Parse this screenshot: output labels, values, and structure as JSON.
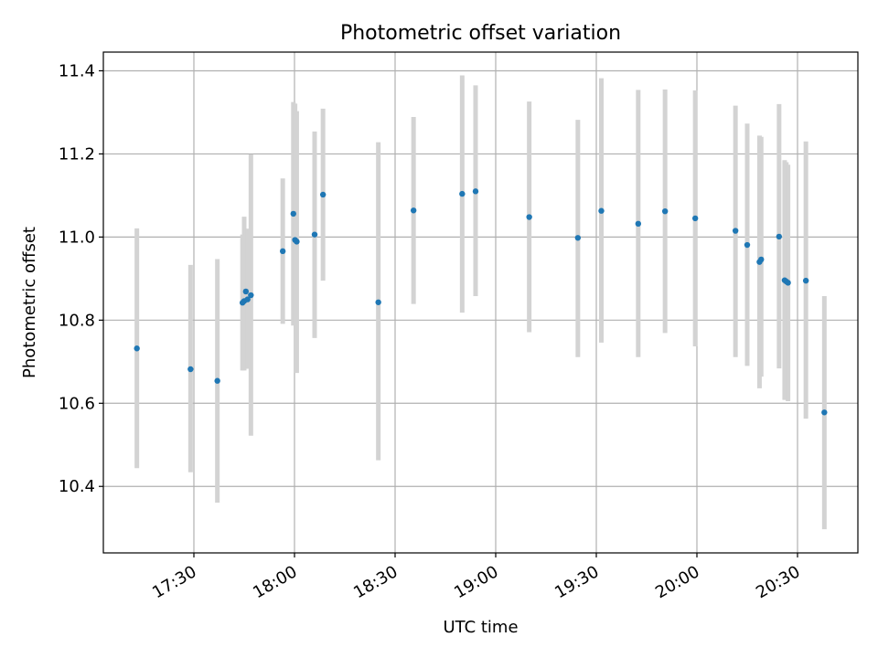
{
  "chart_data": {
    "type": "scatter",
    "title": "Photometric offset variation",
    "xlabel": "UTC time",
    "ylabel": "Photometric offset",
    "x_format": "HH:MM",
    "xlim": [
      "17:03",
      "20:48"
    ],
    "ylim": [
      10.24,
      11.445
    ],
    "xticks": [
      "17:30",
      "18:00",
      "18:30",
      "19:00",
      "19:30",
      "20:00",
      "20:30"
    ],
    "yticks": [
      10.4,
      10.6,
      10.8,
      11.0,
      11.2,
      11.4
    ],
    "ytick_labels": [
      "10.4",
      "10.6",
      "10.8",
      "11.0",
      "11.2",
      "11.4"
    ],
    "grid": true,
    "colors": {
      "point": "#1f77b4",
      "errorbar": "#d3d3d3",
      "grid": "#b0b0b0"
    },
    "points": [
      {
        "x": "17:13:00",
        "y": 10.732,
        "ylo": 10.444,
        "yhi": 11.021
      },
      {
        "x": "17:29:00",
        "y": 10.682,
        "ylo": 10.434,
        "yhi": 10.933
      },
      {
        "x": "17:37:00",
        "y": 10.654,
        "ylo": 10.361,
        "yhi": 10.947
      },
      {
        "x": "17:44:30",
        "y": 10.842,
        "ylo": 10.679,
        "yhi": 11.006
      },
      {
        "x": "17:45:00",
        "y": 10.846,
        "ylo": 10.679,
        "yhi": 11.049
      },
      {
        "x": "17:45:30",
        "y": 10.869,
        "ylo": 10.683,
        "yhi": 11.017
      },
      {
        "x": "17:46:00",
        "y": 10.85,
        "ylo": 10.683,
        "yhi": 11.02
      },
      {
        "x": "17:47:00",
        "y": 10.86,
        "ylo": 10.522,
        "yhi": 11.199
      },
      {
        "x": "17:56:30",
        "y": 10.966,
        "ylo": 10.791,
        "yhi": 11.141
      },
      {
        "x": "17:59:40",
        "y": 11.056,
        "ylo": 10.787,
        "yhi": 11.325
      },
      {
        "x": "18:00:10",
        "y": 10.993,
        "ylo": 10.788,
        "yhi": 11.321
      },
      {
        "x": "18:00:40",
        "y": 10.989,
        "ylo": 10.673,
        "yhi": 11.303
      },
      {
        "x": "18:06:00",
        "y": 11.006,
        "ylo": 10.757,
        "yhi": 11.254
      },
      {
        "x": "18:08:30",
        "y": 11.102,
        "ylo": 10.895,
        "yhi": 11.309
      },
      {
        "x": "18:25:00",
        "y": 10.843,
        "ylo": 10.463,
        "yhi": 11.228
      },
      {
        "x": "18:35:30",
        "y": 11.064,
        "ylo": 10.839,
        "yhi": 11.289
      },
      {
        "x": "18:50:00",
        "y": 11.104,
        "ylo": 10.818,
        "yhi": 11.389
      },
      {
        "x": "18:54:00",
        "y": 11.11,
        "ylo": 10.858,
        "yhi": 11.365
      },
      {
        "x": "19:10:00",
        "y": 11.048,
        "ylo": 10.771,
        "yhi": 11.326
      },
      {
        "x": "19:24:30",
        "y": 10.998,
        "ylo": 10.711,
        "yhi": 11.282
      },
      {
        "x": "19:31:30",
        "y": 11.063,
        "ylo": 10.746,
        "yhi": 11.382
      },
      {
        "x": "19:42:30",
        "y": 11.032,
        "ylo": 10.711,
        "yhi": 11.354
      },
      {
        "x": "19:50:30",
        "y": 11.062,
        "ylo": 10.769,
        "yhi": 11.355
      },
      {
        "x": "19:59:30",
        "y": 11.045,
        "ylo": 10.737,
        "yhi": 11.353
      },
      {
        "x": "20:11:30",
        "y": 11.015,
        "ylo": 10.711,
        "yhi": 11.316
      },
      {
        "x": "20:15:00",
        "y": 10.981,
        "ylo": 10.69,
        "yhi": 11.273
      },
      {
        "x": "20:18:40",
        "y": 10.94,
        "ylo": 10.636,
        "yhi": 11.244
      },
      {
        "x": "20:19:10",
        "y": 10.946,
        "ylo": 10.664,
        "yhi": 11.241
      },
      {
        "x": "20:24:30",
        "y": 11.001,
        "ylo": 10.684,
        "yhi": 11.32
      },
      {
        "x": "20:26:10",
        "y": 10.896,
        "ylo": 10.608,
        "yhi": 11.185
      },
      {
        "x": "20:26:40",
        "y": 10.893,
        "ylo": 10.612,
        "yhi": 11.18
      },
      {
        "x": "20:27:10",
        "y": 10.89,
        "ylo": 10.605,
        "yhi": 11.174
      },
      {
        "x": "20:32:30",
        "y": 10.895,
        "ylo": 10.563,
        "yhi": 11.23
      },
      {
        "x": "20:38:00",
        "y": 10.578,
        "ylo": 10.297,
        "yhi": 10.858
      }
    ]
  }
}
